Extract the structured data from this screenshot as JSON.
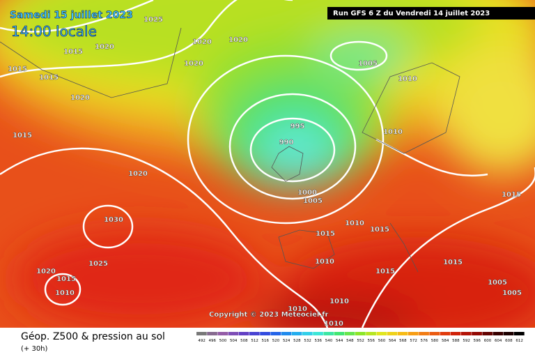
{
  "header": {
    "date": "Samedi 15 juillet 2023",
    "time": "14:00 locale",
    "run": "Run GFS 6 Z du Vendredi 14 juillet 2023"
  },
  "copyright": "Copyright © 2023 Meteociel.fr",
  "footer": {
    "title": "Géop. Z500 & pression au sol",
    "lead": "(+ 30h)"
  },
  "scale": {
    "labels": [
      "492",
      "496",
      "500",
      "504",
      "508",
      "512",
      "516",
      "520",
      "524",
      "528",
      "532",
      "536",
      "540",
      "544",
      "548",
      "552",
      "556",
      "560",
      "564",
      "568",
      "572",
      "576",
      "580",
      "584",
      "588",
      "592",
      "596",
      "600",
      "604",
      "608",
      "612"
    ]
  },
  "isobar_labels": [
    "1025",
    "1020",
    "1020",
    "1020",
    "1020",
    "1015",
    "1015",
    "1015",
    "1020",
    "1015",
    "1005",
    "1010",
    "995",
    "990",
    "1010",
    "1020",
    "1000",
    "1005",
    "1030",
    "1010",
    "1015",
    "1015",
    "1015",
    "1025",
    "1010",
    "1015",
    "1015",
    "1020",
    "1015",
    "1010",
    "1005",
    "1005",
    "1010",
    "1010",
    "1010"
  ]
}
